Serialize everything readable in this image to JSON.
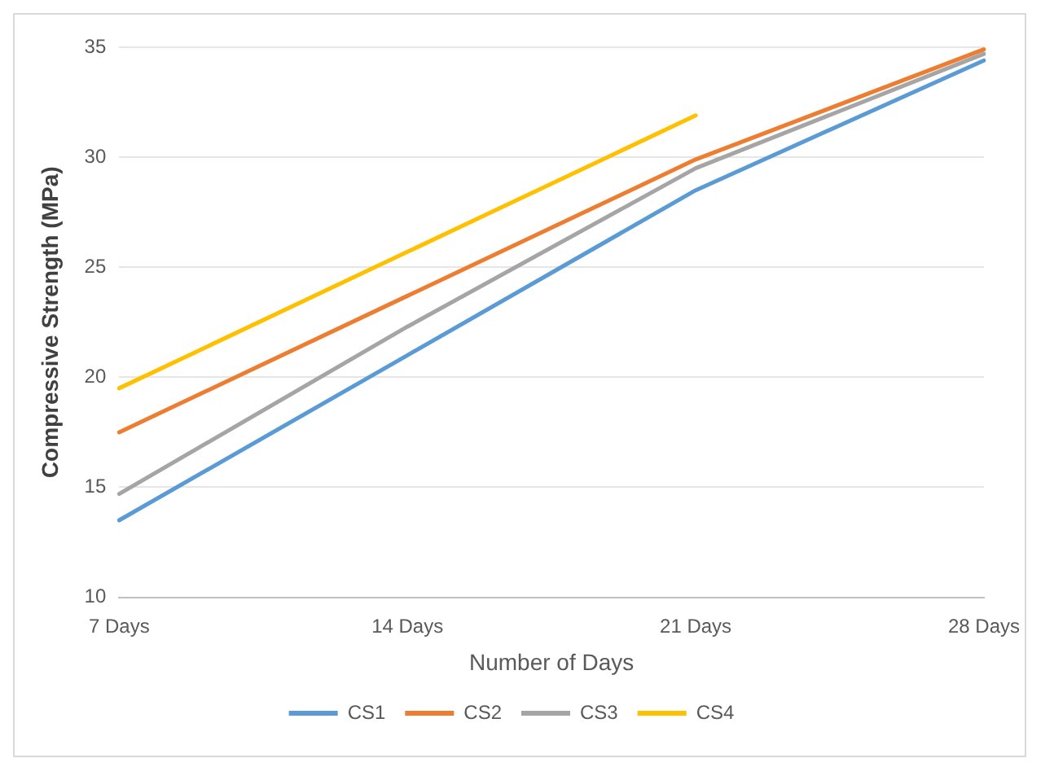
{
  "chart_data": {
    "type": "line",
    "xlabel": "Number of Days",
    "ylabel": "Compressive Strength (MPa)",
    "categories": [
      "7 Days",
      "14 Days",
      "21 Days",
      "28 Days"
    ],
    "series": [
      {
        "name": "CS1",
        "color": "#5b9bd5",
        "values": [
          13.5,
          21,
          28.5,
          34.4
        ]
      },
      {
        "name": "CS2",
        "color": "#ed7d31",
        "values": [
          17.5,
          23.7,
          29.9,
          34.9
        ]
      },
      {
        "name": "CS3",
        "color": "#a5a5a5",
        "values": [
          14.7,
          22.3,
          29.5,
          34.7
        ]
      },
      {
        "name": "CS4",
        "color": "#ffc000",
        "values": [
          19.5,
          25.7,
          31.9,
          null
        ]
      }
    ],
    "ylim": [
      10,
      35
    ],
    "yticks": [
      10,
      15,
      20,
      25,
      30,
      35
    ],
    "grid": "y",
    "legend": "bottom",
    "marker": "none",
    "line_style": "solid"
  }
}
